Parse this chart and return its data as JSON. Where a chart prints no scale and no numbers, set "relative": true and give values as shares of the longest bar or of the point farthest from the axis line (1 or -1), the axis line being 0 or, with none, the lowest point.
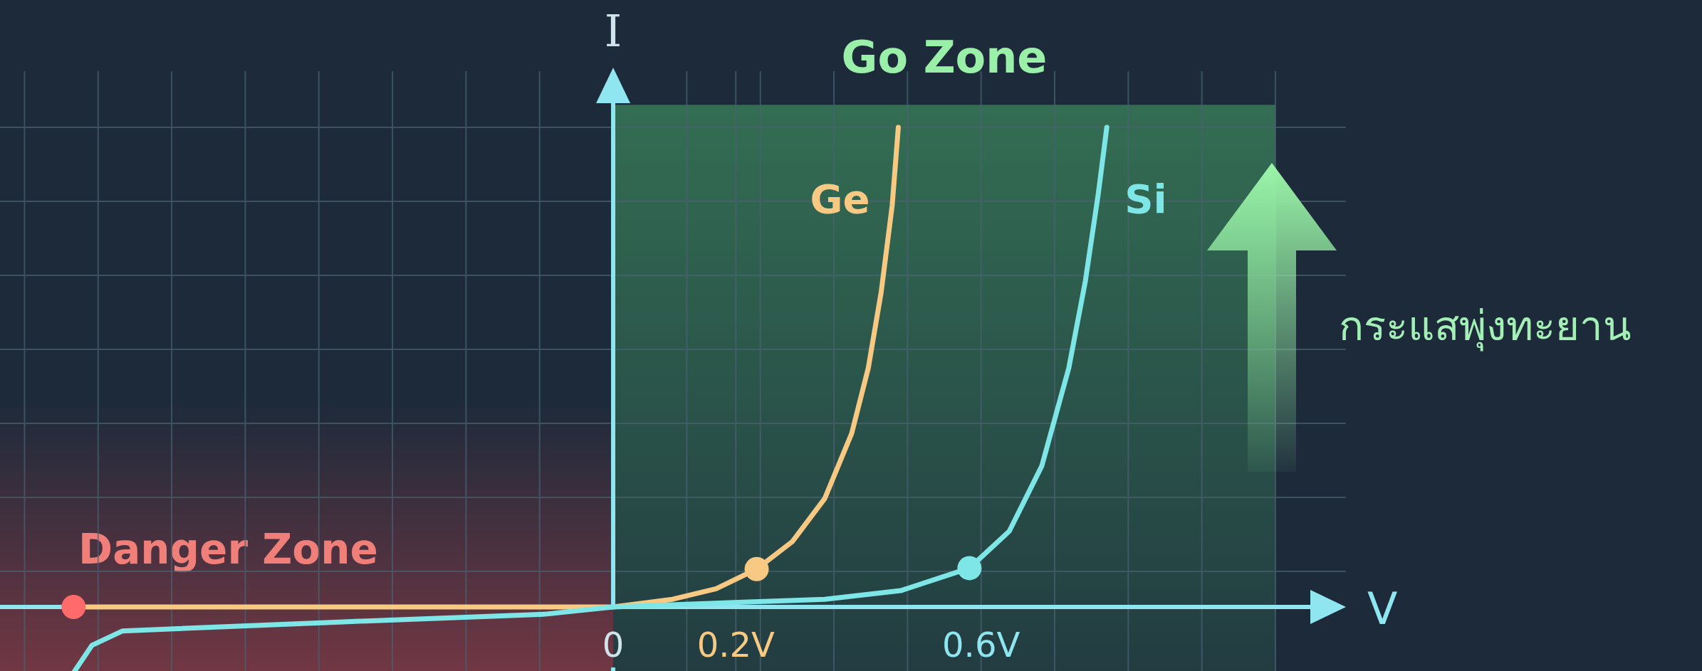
{
  "chart_data": {
    "type": "line",
    "relative": true,
    "xlabel": "V",
    "ylabel": "I",
    "xlim": [
      -1.0,
      1.195
    ],
    "xticks": [
      {
        "value": -0.96,
        "label": null
      },
      {
        "value": -0.84,
        "label": null
      },
      {
        "value": -0.72,
        "label": null
      },
      {
        "value": -0.6,
        "label": null
      },
      {
        "value": -0.48,
        "label": null
      },
      {
        "value": -0.36,
        "label": null
      },
      {
        "value": -0.24,
        "label": null
      },
      {
        "value": -0.12,
        "label": null
      },
      {
        "value": 0,
        "label": "0"
      },
      {
        "value": 0.12,
        "label": null
      },
      {
        "value": 0.2,
        "label": "0.2V"
      },
      {
        "value": 0.24,
        "label": null
      },
      {
        "value": 0.36,
        "label": null
      },
      {
        "value": 0.48,
        "label": null
      },
      {
        "value": 0.6,
        "label": "0.6V"
      },
      {
        "value": 0.72,
        "label": null
      },
      {
        "value": 0.84,
        "label": null
      },
      {
        "value": 0.96,
        "label": null
      },
      {
        "value": 1.08,
        "label": null
      }
    ],
    "grid": true,
    "series": [
      {
        "name": "Ge",
        "color": "#f7c983",
        "x": [
          -0.88,
          -0.5,
          0,
          0.097,
          0.168,
          0.234,
          0.292,
          0.345,
          0.389,
          0.416,
          0.437,
          0.455,
          0.465
        ],
        "values": [
          0,
          0,
          0,
          0.016,
          0.038,
          0.079,
          0.136,
          0.226,
          0.362,
          0.498,
          0.656,
          0.837,
          1.0
        ]
      },
      {
        "name": "Si",
        "color": "#7ee6e6",
        "x": [
          -0.88,
          -0.85,
          -0.8,
          -0.44,
          -0.111,
          0,
          0.15,
          0.345,
          0.469,
          0.581,
          0.646,
          0.699,
          0.743,
          0.77,
          0.791,
          0.805
        ],
        "values": [
          -0.137,
          -0.08,
          -0.05,
          -0.031,
          -0.015,
          0,
          0.007,
          0.016,
          0.034,
          0.081,
          0.158,
          0.294,
          0.498,
          0.679,
          0.86,
          1.0
        ]
      },
      {
        "type": "scatter",
        "colors": [
          "#ff6b6b",
          "#f7c983",
          "#7ee6e6"
        ],
        "x": [
          -0.88,
          0.234,
          0.581
        ],
        "values": [
          0,
          0.079,
          0.081
        ]
      }
    ],
    "bands": [
      {
        "axis": "x",
        "from": 0,
        "to": 1.08,
        "label": "Go Zone",
        "color": "#4fbf72"
      },
      {
        "axis": "x",
        "from": -1.0,
        "to": 0,
        "label": "Danger Zone",
        "color": "#d9474f"
      }
    ],
    "ref_lines": [
      {
        "axis": "x",
        "value": 0,
        "color": "#8fe6f0"
      }
    ],
    "annotations": [
      "กระแสพุ่งทะยาน"
    ]
  }
}
